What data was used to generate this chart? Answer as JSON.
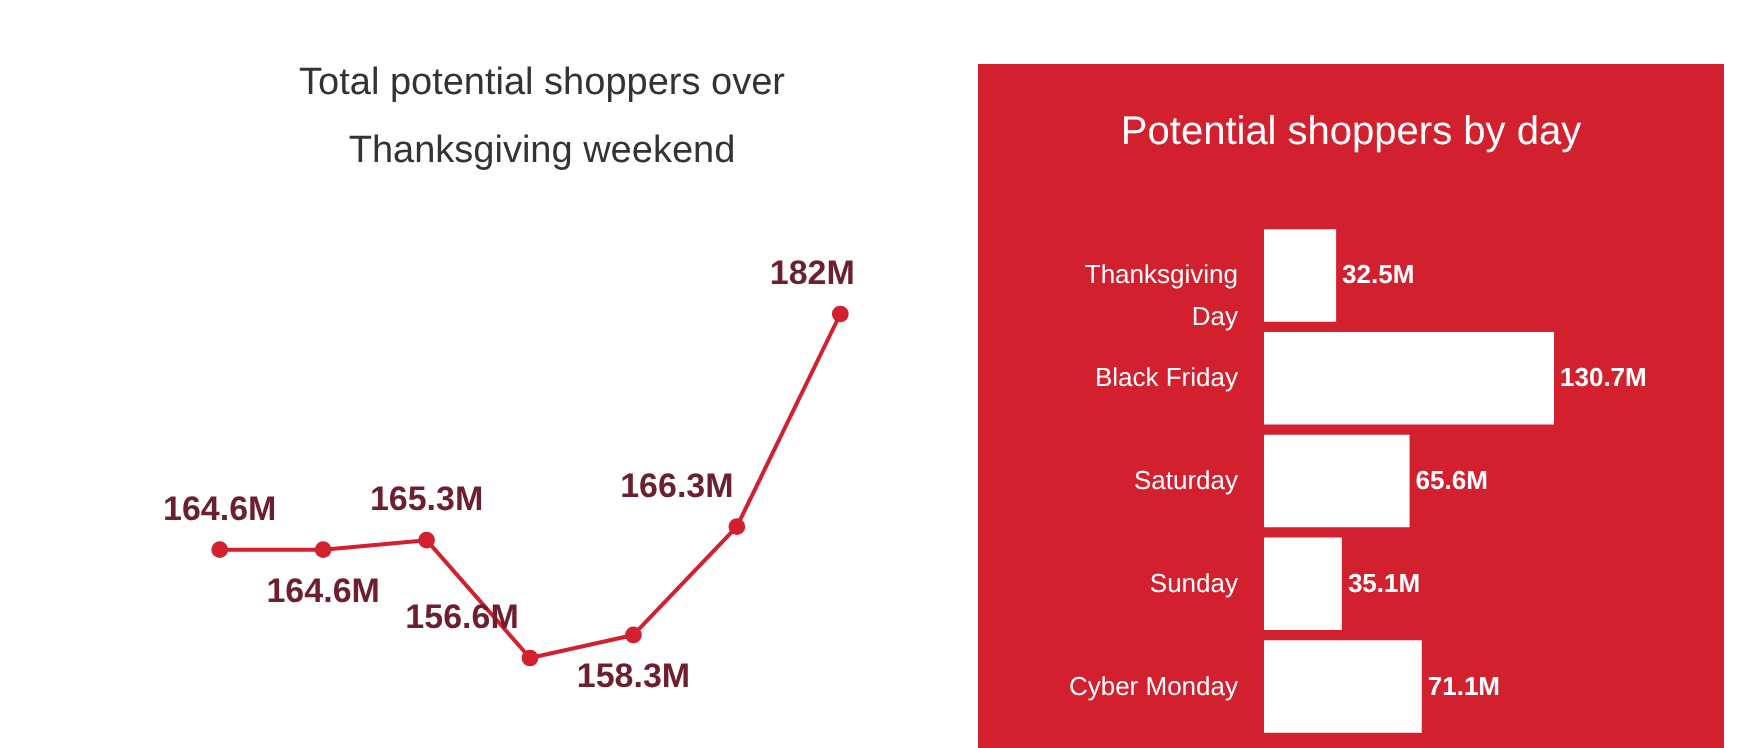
{
  "chart_data": [
    {
      "type": "line",
      "title": "Total potential shoppers over Thanksgiving weekend",
      "categories": [
        null,
        null,
        null,
        null,
        null,
        null,
        null
      ],
      "series": [
        {
          "color": "#d2202e",
          "values": [
            164.6,
            164.6,
            165.3,
            156.6,
            158.3,
            166.3,
            182
          ],
          "value_labels": [
            "164.6M",
            "164.6M",
            "165.3M",
            "156.6M",
            "158.3M",
            "166.3M",
            "182M"
          ]
        }
      ],
      "marker": "circle",
      "line_style": "solid"
    },
    {
      "type": "bar",
      "orientation": "horizontal",
      "title": "Potential shoppers by day",
      "categories": [
        "Thanksgiving Day",
        "Black Friday",
        "Saturday",
        "Sunday",
        "Cyber Monday"
      ],
      "values": [
        32.5,
        130.7,
        65.6,
        35.1,
        71.1
      ],
      "color": "#ffffff",
      "value_labels": [
        "32.5M",
        "130.7M",
        "65.6M",
        "35.1M",
        "71.1M"
      ]
    }
  ]
}
